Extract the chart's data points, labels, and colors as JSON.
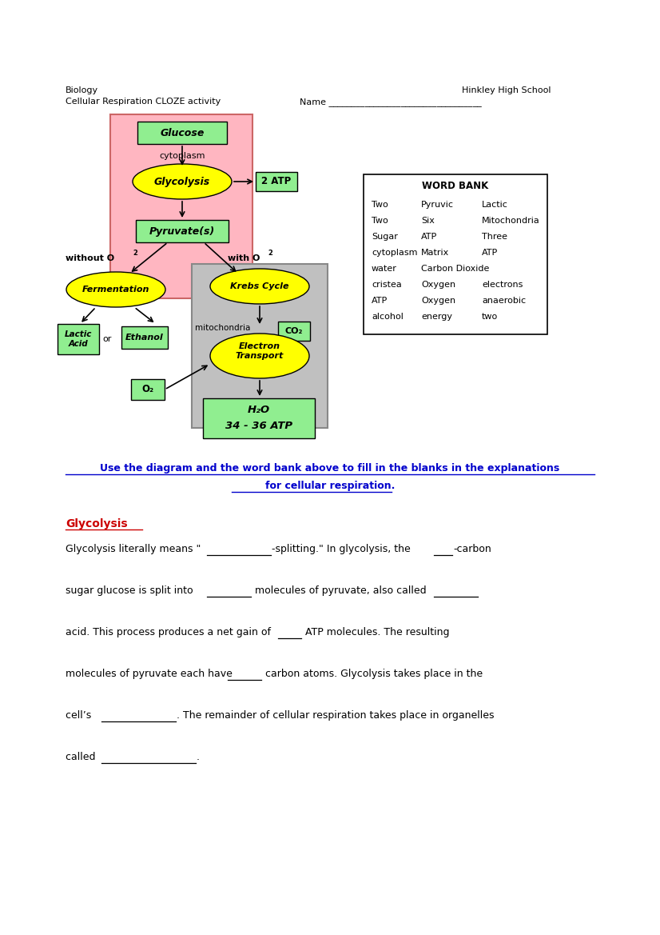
{
  "page_title_left": "Biology",
  "page_subtitle_left": "Cellular Respiration CLOZE activity",
  "page_title_right": "Hinkley High School",
  "name_label": "Name __________________________________",
  "word_bank": {
    "title": "WORD BANK",
    "words": [
      [
        "Two",
        "Pyruvic",
        "Lactic"
      ],
      [
        "Two",
        "Six",
        "Mitochondria"
      ],
      [
        "Sugar",
        "ATP",
        "Three"
      ],
      [
        "cytoplasm",
        "Matrix",
        "ATP"
      ],
      [
        "water",
        "Carbon Dioxide",
        ""
      ],
      [
        "cristea",
        "Oxygen",
        "electrons"
      ],
      [
        "ATP",
        "Oxygen",
        "anaerobic"
      ],
      [
        "alcohol",
        "energy",
        "two"
      ]
    ]
  },
  "instruction_line1": "Use the diagram and the word bank above to fill in the blanks in the explanations",
  "instruction_line2": "for cellular respiration.",
  "section_title": "Glycolysis",
  "paragraph_lines": [
    [
      "Glycolysis literally means \"",
      13,
      "-splitting.\" In glycolysis, the ",
      4,
      "-carbon"
    ],
    [
      "sugar glucose is split into ",
      9,
      " molecules of pyruvate, also called ",
      9,
      ""
    ],
    [
      "acid. This process produces a net gain of ",
      5,
      " ATP molecules. The resulting",
      0,
      ""
    ],
    [
      "molecules of pyruvate each have ",
      7,
      " carbon atoms. Glycolysis takes place in the",
      0,
      ""
    ],
    [
      "cell’s ",
      15,
      ". The remainder of cellular respiration takes place in organelles",
      0,
      ""
    ],
    [
      "called ",
      19,
      ".",
      0,
      ""
    ]
  ],
  "colors": {
    "pink": "#FFB6C1",
    "gray": "#C0C0C0",
    "yellow": "#FFFF00",
    "light_green": "#90EE90",
    "white": "#FFFFFF",
    "black": "#000000",
    "red": "#CC0000",
    "blue": "#0000CC"
  }
}
